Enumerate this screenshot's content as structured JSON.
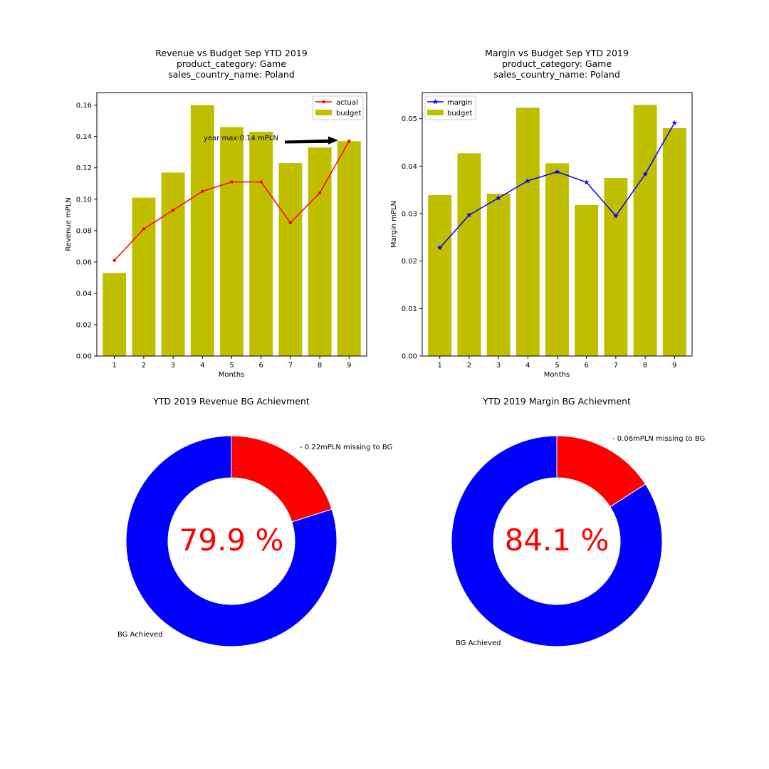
{
  "chart_data": [
    {
      "type": "bar",
      "title_lines": [
        "Revenue vs Budget Sep YTD 2019",
        "product_category: Game",
        "sales_country_name: Poland"
      ],
      "xlabel": "Months",
      "ylabel": "Revenue mPLN",
      "categories": [
        "1",
        "2",
        "3",
        "4",
        "5",
        "6",
        "7",
        "8",
        "9"
      ],
      "ylim": [
        0,
        0.168
      ],
      "yticks": [
        "0.00",
        "0.02",
        "0.04",
        "0.06",
        "0.08",
        "0.10",
        "0.12",
        "0.14",
        "0.16"
      ],
      "legend_position": "top-right",
      "series": [
        {
          "name": "actual",
          "kind": "line",
          "marker": "dot",
          "color": "#ff0000",
          "values": [
            0.061,
            0.081,
            0.093,
            0.105,
            0.111,
            0.111,
            0.085,
            0.104,
            0.137
          ]
        },
        {
          "name": "budget",
          "kind": "bar",
          "color": "#bfbf00",
          "values": [
            0.053,
            0.101,
            0.117,
            0.16,
            0.146,
            0.143,
            0.123,
            0.133,
            0.137
          ]
        }
      ],
      "annotation": {
        "text": "year max:0.14 mPLN",
        "arrow_target": {
          "x": "9",
          "y": 0.137
        }
      }
    },
    {
      "type": "bar",
      "title_lines": [
        "Margin vs Budget Sep YTD 2019",
        "product_category: Game",
        "sales_country_name: Poland"
      ],
      "xlabel": "Months",
      "ylabel": "Margin mPLN",
      "categories": [
        "1",
        "2",
        "3",
        "4",
        "5",
        "6",
        "7",
        "8",
        "9"
      ],
      "ylim": [
        0,
        0.0555
      ],
      "yticks": [
        "0.00",
        "0.01",
        "0.02",
        "0.03",
        "0.04",
        "0.05"
      ],
      "legend_position": "top-left",
      "series": [
        {
          "name": "margin",
          "kind": "line",
          "marker": "star",
          "color": "#0000ff",
          "values": [
            0.0228,
            0.0297,
            0.0333,
            0.0369,
            0.0388,
            0.0366,
            0.0295,
            0.0383,
            0.0491
          ]
        },
        {
          "name": "budget",
          "kind": "bar",
          "color": "#bfbf00",
          "values": [
            0.0339,
            0.0427,
            0.0342,
            0.0523,
            0.0406,
            0.0318,
            0.0375,
            0.0529,
            0.048
          ]
        }
      ]
    },
    {
      "type": "pie",
      "title": "YTD 2019 Revenue BG Achievment",
      "center_label": "79.9 %",
      "center_color": "#ff0000",
      "slices": [
        {
          "label": "BG Achieved",
          "value": 79.9,
          "color": "#0000ff"
        },
        {
          "label": "- 0.22mPLN missing to BG",
          "value": 20.1,
          "color": "#ff0000"
        }
      ]
    },
    {
      "type": "pie",
      "title": "YTD 2019 Margin BG Achievment",
      "center_label": "84.1 %",
      "center_color": "#ff0000",
      "slices": [
        {
          "label": "BG Achieved",
          "value": 84.1,
          "color": "#0000ff"
        },
        {
          "label": "- 0.06mPLN missing to BG",
          "value": 15.9,
          "color": "#ff0000"
        }
      ]
    }
  ]
}
